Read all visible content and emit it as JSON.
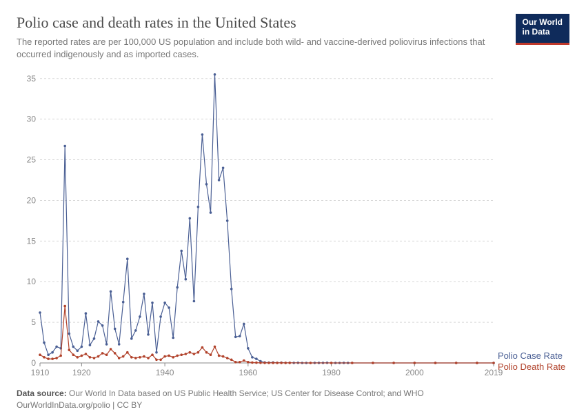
{
  "header": {
    "title": "Polio case and death rates in the United States",
    "subtitle": "The reported rates are per 100,000 US population and include both wild- and vaccine-derived poliovirus infections that occurred indigenously and as imported cases."
  },
  "logo": {
    "line1": "Our World",
    "line2": "in Data"
  },
  "footer": {
    "source_label": "Data source:",
    "source_text": "Our World In Data based on US Public Health Service; US Center for Disease Control; and WHO",
    "link_text": "OurWorldInData.org/polio | CC BY"
  },
  "chart": {
    "type": "line",
    "background_color": "#ffffff",
    "grid_color": "#d6d6d6",
    "axis_text_color": "#888888",
    "axis_line_color": "#888888",
    "title_fontsize": 22,
    "subtitle_fontsize": 13,
    "label_fontsize": 12,
    "tick_fontsize": 12,
    "xlim": [
      1910,
      2019
    ],
    "ylim": [
      0,
      36
    ],
    "yticks": [
      0,
      5,
      10,
      15,
      20,
      25,
      30,
      35
    ],
    "xticks": [
      1910,
      1920,
      1940,
      1960,
      1980,
      2000,
      2019
    ],
    "grid_dash": "3 3",
    "line_width": 1.2,
    "marker_size": 1.8,
    "series": [
      {
        "name": "Polio Case Rate",
        "color": "#4a5f94",
        "label_color": "#4a5f94",
        "x": [
          1910,
          1911,
          1912,
          1913,
          1914,
          1915,
          1916,
          1917,
          1918,
          1919,
          1920,
          1921,
          1922,
          1923,
          1924,
          1925,
          1926,
          1927,
          1928,
          1929,
          1930,
          1931,
          1932,
          1933,
          1934,
          1935,
          1936,
          1937,
          1938,
          1939,
          1940,
          1941,
          1942,
          1943,
          1944,
          1945,
          1946,
          1947,
          1948,
          1949,
          1950,
          1951,
          1952,
          1953,
          1954,
          1955,
          1956,
          1957,
          1958,
          1959,
          1960,
          1961,
          1962,
          1963,
          1964,
          1965,
          1966,
          1967,
          1968,
          1969,
          1970,
          1971,
          1972,
          1973,
          1974,
          1975,
          1976,
          1977,
          1978,
          1979,
          1980,
          1981,
          1982,
          1983,
          1984,
          1985,
          1990,
          1995,
          2000,
          2005,
          2010,
          2015,
          2019
        ],
        "y": [
          6.2,
          2.5,
          1.0,
          1.3,
          2.0,
          1.8,
          26.7,
          3.6,
          2.0,
          1.5,
          2.0,
          6.1,
          2.2,
          3.0,
          5.1,
          4.6,
          2.3,
          8.8,
          4.2,
          2.3,
          7.5,
          12.8,
          3.0,
          4.0,
          5.7,
          8.5,
          3.5,
          7.4,
          1.3,
          5.7,
          7.4,
          6.8,
          3.1,
          9.3,
          13.8,
          10.3,
          17.8,
          7.6,
          19.2,
          28.1,
          22.0,
          18.5,
          35.5,
          22.5,
          24.0,
          17.5,
          9.1,
          3.2,
          3.3,
          4.8,
          1.8,
          0.7,
          0.5,
          0.2,
          0.06,
          0.03,
          0.06,
          0.02,
          0.03,
          0.01,
          0.016,
          0.01,
          0.015,
          0.004,
          0.004,
          0.004,
          0.007,
          0.009,
          0.007,
          0.015,
          0.004,
          0.003,
          0.004,
          0.006,
          0.003,
          0.003,
          0.002,
          0.002,
          0,
          0,
          0,
          0,
          0
        ]
      },
      {
        "name": "Polio Death Rate",
        "color": "#b1422b",
        "label_color": "#b1422b",
        "x": [
          1910,
          1911,
          1912,
          1913,
          1914,
          1915,
          1916,
          1917,
          1918,
          1919,
          1920,
          1921,
          1922,
          1923,
          1924,
          1925,
          1926,
          1927,
          1928,
          1929,
          1930,
          1931,
          1932,
          1933,
          1934,
          1935,
          1936,
          1937,
          1938,
          1939,
          1940,
          1941,
          1942,
          1943,
          1944,
          1945,
          1946,
          1947,
          1948,
          1949,
          1950,
          1951,
          1952,
          1953,
          1954,
          1955,
          1956,
          1957,
          1958,
          1959,
          1960,
          1961,
          1962,
          1963,
          1964,
          1965,
          1966,
          1967,
          1968,
          1969,
          1970,
          1975,
          1980,
          1985,
          1990,
          1995,
          2000,
          2005,
          2010,
          2015,
          2019
        ],
        "y": [
          1.0,
          0.7,
          0.5,
          0.5,
          0.6,
          0.9,
          7.0,
          1.6,
          1.0,
          0.7,
          0.9,
          1.1,
          0.7,
          0.6,
          0.8,
          1.2,
          1.0,
          1.7,
          1.2,
          0.6,
          0.8,
          1.3,
          0.7,
          0.6,
          0.7,
          0.8,
          0.6,
          1.0,
          0.4,
          0.4,
          0.8,
          0.9,
          0.7,
          0.9,
          1.0,
          1.1,
          1.3,
          1.1,
          1.3,
          1.9,
          1.3,
          1.0,
          2.0,
          0.9,
          0.8,
          0.6,
          0.4,
          0.1,
          0.1,
          0.3,
          0.1,
          0.05,
          0.03,
          0.02,
          0.01,
          0.01,
          0.005,
          0.005,
          0.01,
          0.005,
          0.005,
          0,
          0,
          0,
          0,
          0,
          0,
          0,
          0,
          0,
          0
        ]
      }
    ]
  }
}
